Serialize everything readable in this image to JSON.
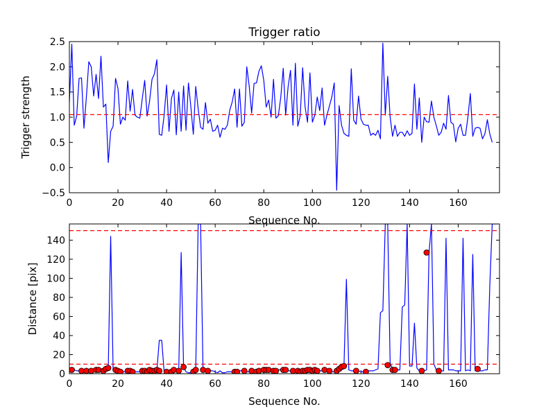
{
  "chart_data": [
    {
      "type": "line",
      "title": "Trigger ratio",
      "xlabel": "Sequence No.",
      "ylabel": "Trigger strength",
      "xlim": [
        0,
        177
      ],
      "ylim": [
        -0.5,
        2.5
      ],
      "xticks": [
        "0",
        "20",
        "40",
        "60",
        "80",
        "100",
        "120",
        "140",
        "160"
      ],
      "yticks": [
        "−0.5",
        "0.0",
        "0.5",
        "1.0",
        "1.5",
        "2.0",
        "2.5"
      ],
      "grid": false,
      "series": [
        {
          "color": "#0000ff",
          "values": [
            1.3,
            2.45,
            0.84,
            1.02,
            1.77,
            1.78,
            0.78,
            1.4,
            2.1,
            2.0,
            1.42,
            1.85,
            1.37,
            2.21,
            1.2,
            1.26,
            0.1,
            0.72,
            0.82,
            1.77,
            1.57,
            0.86,
            1.0,
            0.94,
            1.72,
            1.12,
            1.55,
            1.04,
            1.0,
            0.98,
            1.37,
            1.73,
            1.02,
            1.32,
            1.75,
            1.86,
            2.14,
            0.66,
            0.64,
            1.04,
            1.64,
            0.72,
            1.37,
            1.54,
            0.65,
            1.5,
            0.72,
            1.62,
            0.74,
            1.68,
            1.2,
            0.66,
            1.61,
            1.17,
            0.8,
            0.76,
            1.29,
            0.88,
            0.96,
            0.72,
            0.74,
            0.84,
            0.6,
            0.78,
            0.76,
            0.84,
            1.14,
            1.3,
            1.56,
            0.8,
            1.56,
            0.82,
            0.9,
            2.0,
            1.62,
            1.08,
            1.67,
            1.68,
            1.91,
            2.02,
            1.73,
            1.2,
            1.34,
            1.0,
            1.75,
            0.98,
            1.03,
            1.4,
            1.97,
            1.04,
            1.6,
            1.93,
            0.84,
            2.07,
            0.82,
            1.03,
            1.98,
            1.2,
            0.9,
            1.88,
            0.9,
            1.04,
            1.4,
            1.13,
            1.58,
            0.84,
            1.04,
            1.22,
            1.4,
            1.68,
            -0.45,
            1.23,
            0.84,
            0.68,
            0.64,
            0.62,
            1.96,
            0.94,
            0.86,
            1.42,
            0.96,
            0.86,
            0.84,
            0.84,
            0.64,
            0.68,
            0.64,
            0.74,
            0.57,
            2.47,
            1.04,
            1.81,
            1.0,
            0.62,
            0.84,
            0.62,
            0.7,
            0.7,
            0.62,
            0.73,
            0.64,
            0.68,
            1.66,
            0.76,
            1.38,
            0.5,
            1.0,
            0.91,
            0.9,
            1.32,
            1.0,
            0.83,
            0.64,
            0.7,
            0.88,
            0.76,
            1.43,
            0.9,
            0.86,
            0.51,
            0.78,
            0.86,
            0.64,
            0.64,
            1.0,
            1.47,
            0.62,
            0.78,
            0.8,
            0.78,
            0.57,
            0.67,
            0.95,
            0.67,
            0.5
          ]
        }
      ],
      "reference_lines": [
        {
          "axis": "y",
          "value": 1.05,
          "style": "dashed",
          "color": "#ff0000"
        }
      ]
    },
    {
      "type": "line",
      "title": "",
      "xlabel": "Sequence No.",
      "ylabel": "Distance [pix]",
      "xlim": [
        0,
        177
      ],
      "ylim": [
        0,
        157
      ],
      "xticks": [
        "0",
        "20",
        "40",
        "60",
        "80",
        "100",
        "120",
        "140",
        "160"
      ],
      "yticks": [
        "0",
        "20",
        "40",
        "60",
        "80",
        "100",
        "120",
        "140"
      ],
      "grid": false,
      "series": [
        {
          "color": "#0000ff",
          "values": [
            4,
            4,
            4,
            3,
            3,
            3,
            2,
            3,
            3,
            4,
            4,
            3,
            3,
            4,
            5,
            6,
            5,
            144,
            4,
            3,
            2,
            2,
            2,
            2,
            3,
            3,
            3,
            2,
            2,
            2,
            2,
            3,
            3,
            4,
            4,
            3,
            3,
            35,
            35,
            2,
            2,
            3,
            4,
            3,
            2,
            3,
            127,
            7,
            2,
            1,
            1,
            3,
            4,
            157,
            157,
            3,
            4,
            3,
            3,
            3,
            2,
            1,
            3,
            1,
            1,
            2,
            2,
            2,
            2,
            2,
            3,
            3,
            2,
            2,
            2,
            3,
            3,
            3,
            4,
            4,
            4,
            3,
            3,
            3,
            3,
            3,
            4,
            4,
            3,
            3,
            3,
            3,
            3,
            2,
            3,
            3,
            3,
            4,
            4,
            4,
            4,
            4,
            4,
            3,
            3,
            3,
            3,
            2,
            2,
            2,
            3,
            5,
            8,
            8,
            99,
            4,
            3,
            3,
            3,
            3,
            2,
            2,
            2,
            3,
            3,
            3,
            4,
            5,
            64,
            66,
            157,
            157,
            10,
            6,
            4,
            4,
            4,
            70,
            72,
            157,
            8,
            8,
            53,
            6,
            3,
            3,
            3,
            4,
            127,
            157,
            10,
            4,
            4,
            3,
            3,
            142,
            4,
            4,
            4,
            3,
            3,
            3,
            142,
            3,
            4,
            3,
            125,
            3,
            4,
            3,
            3,
            4,
            4,
            92,
            157,
            157,
            157
          ]
        }
      ],
      "markers": {
        "color": "#ff0000",
        "x": [
          1,
          5,
          7,
          9,
          11,
          12,
          14,
          15,
          16,
          19,
          20,
          21,
          24,
          25,
          26,
          30,
          31,
          32,
          33,
          34,
          35,
          36,
          37,
          40,
          42,
          43,
          45,
          47,
          51,
          52,
          55,
          57,
          68,
          69,
          72,
          75,
          77,
          78,
          80,
          81,
          82,
          84,
          85,
          88,
          89,
          92,
          94,
          95,
          96,
          97,
          98,
          99,
          100,
          101,
          102,
          105,
          107,
          110,
          111,
          112,
          113,
          118,
          122,
          131,
          133,
          134,
          145,
          147,
          152,
          168
        ],
        "y": [
          4,
          3,
          3,
          3,
          4,
          4,
          3,
          5,
          6,
          4,
          3,
          2,
          3,
          3,
          2,
          3,
          3,
          2,
          4,
          3,
          3,
          4,
          3,
          2,
          2,
          4,
          3,
          7,
          2,
          4,
          4,
          3,
          2,
          2,
          3,
          3,
          2,
          3,
          4,
          4,
          4,
          3,
          3,
          4,
          4,
          3,
          3,
          2,
          3,
          3,
          4,
          4,
          3,
          4,
          3,
          4,
          3,
          3,
          5,
          7,
          8,
          3,
          2,
          9,
          4,
          4,
          3,
          127,
          3,
          5
        ]
      },
      "reference_lines": [
        {
          "axis": "y",
          "value": 150,
          "style": "dashed",
          "color": "#ff0000"
        },
        {
          "axis": "y",
          "value": 10,
          "style": "dashed",
          "color": "#ff0000"
        }
      ]
    }
  ]
}
